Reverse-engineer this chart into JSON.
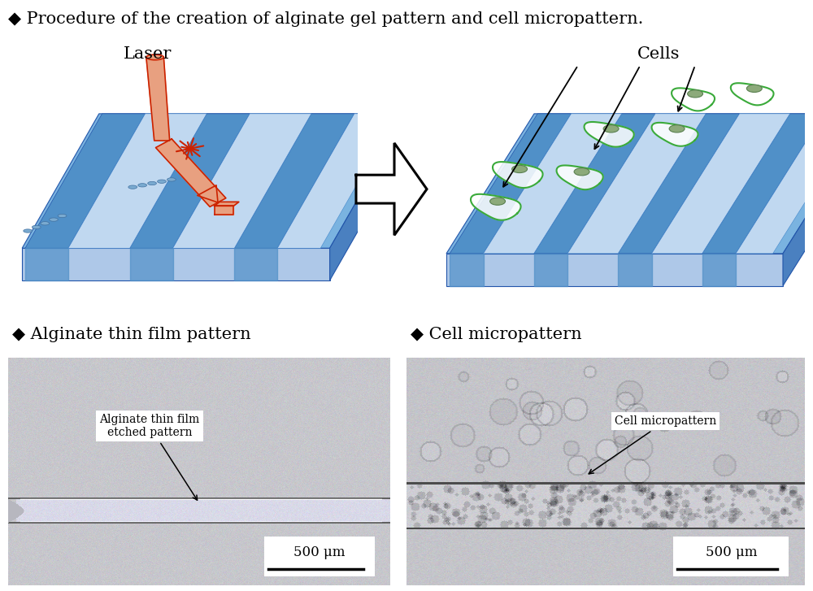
{
  "title": "◆ Procedure of the creation of alginate gel pattern and cell micropattern.",
  "title_fontsize": 15,
  "label_left": "◆ Alginate thin film pattern",
  "label_right": "◆ Cell micropattern",
  "label_fontsize": 15,
  "laser_label": "Laser",
  "cells_label": "Cells",
  "annotation_left": "Alginate thin film\netched pattern",
  "annotation_right": "Cell micropattern",
  "scale_bar_text": "500 μm",
  "bg_color": "#ffffff",
  "plate_top_color": "#7ab3e0",
  "plate_side_color": "#4a80c0",
  "plate_front_color": "#aec8e8",
  "stripe_dark_color": "#5090c8",
  "stripe_light_color": "#c0d8f0",
  "cell_outline_color": "#3aaa3a",
  "cell_fill_color": "#d0f0d0",
  "cell_nucleus_color": "#70b060",
  "laser_body_color": "#e8a080",
  "laser_outline_color": "#cc2200",
  "spark_color": "#cc2200"
}
